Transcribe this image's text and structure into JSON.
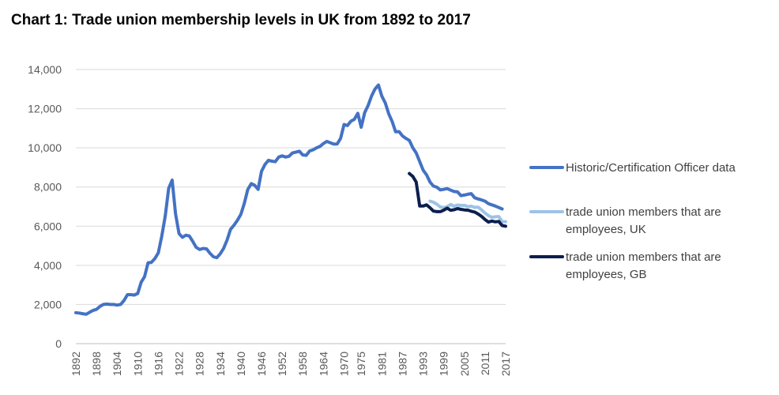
{
  "title": "Chart 1: Trade union membership levels in UK from 1892 to 2017",
  "chart_data": {
    "type": "line",
    "title": "Chart 1: Trade union membership levels in UK from 1892 to 2017",
    "xlabel": "",
    "ylabel": "",
    "ylim": [
      0,
      14000
    ],
    "xlim": [
      1892,
      2017
    ],
    "grid": true,
    "legend_position": "right",
    "y_ticks": [
      "0",
      "2,000",
      "4,000",
      "6,000",
      "8,000",
      "10,000",
      "12,000",
      "14,000"
    ],
    "x_ticks": [
      "1892",
      "1898",
      "1904",
      "1910",
      "1916",
      "1922",
      "1928",
      "1934",
      "1940",
      "1946",
      "1952",
      "1958",
      "1964",
      "1970",
      "1975",
      "1981",
      "1987",
      "1993",
      "1999",
      "2005",
      "2011",
      "2017"
    ],
    "series": [
      {
        "name": "Historic/Certification Officer data",
        "color": "#4472C4",
        "points": [
          [
            1892,
            1580
          ],
          [
            1893,
            1560
          ],
          [
            1894,
            1530
          ],
          [
            1895,
            1500
          ],
          [
            1896,
            1600
          ],
          [
            1897,
            1700
          ],
          [
            1898,
            1750
          ],
          [
            1899,
            1900
          ],
          [
            1900,
            2000
          ],
          [
            1901,
            2020
          ],
          [
            1902,
            2000
          ],
          [
            1903,
            2000
          ],
          [
            1904,
            1970
          ],
          [
            1905,
            2000
          ],
          [
            1906,
            2200
          ],
          [
            1907,
            2500
          ],
          [
            1908,
            2500
          ],
          [
            1909,
            2480
          ],
          [
            1910,
            2560
          ],
          [
            1911,
            3140
          ],
          [
            1912,
            3420
          ],
          [
            1913,
            4130
          ],
          [
            1914,
            4150
          ],
          [
            1915,
            4350
          ],
          [
            1916,
            4640
          ],
          [
            1917,
            5500
          ],
          [
            1918,
            6530
          ],
          [
            1919,
            7930
          ],
          [
            1920,
            8350
          ],
          [
            1921,
            6630
          ],
          [
            1922,
            5620
          ],
          [
            1923,
            5430
          ],
          [
            1924,
            5540
          ],
          [
            1925,
            5500
          ],
          [
            1926,
            5220
          ],
          [
            1927,
            4920
          ],
          [
            1928,
            4810
          ],
          [
            1929,
            4860
          ],
          [
            1930,
            4840
          ],
          [
            1931,
            4620
          ],
          [
            1932,
            4440
          ],
          [
            1933,
            4390
          ],
          [
            1934,
            4590
          ],
          [
            1935,
            4870
          ],
          [
            1936,
            5300
          ],
          [
            1937,
            5840
          ],
          [
            1938,
            6050
          ],
          [
            1939,
            6300
          ],
          [
            1940,
            6610
          ],
          [
            1941,
            7160
          ],
          [
            1942,
            7870
          ],
          [
            1943,
            8170
          ],
          [
            1944,
            8090
          ],
          [
            1945,
            7880
          ],
          [
            1946,
            8800
          ],
          [
            1947,
            9150
          ],
          [
            1948,
            9360
          ],
          [
            1949,
            9320
          ],
          [
            1950,
            9290
          ],
          [
            1951,
            9530
          ],
          [
            1952,
            9590
          ],
          [
            1953,
            9530
          ],
          [
            1954,
            9570
          ],
          [
            1955,
            9740
          ],
          [
            1956,
            9780
          ],
          [
            1957,
            9830
          ],
          [
            1958,
            9640
          ],
          [
            1959,
            9620
          ],
          [
            1960,
            9840
          ],
          [
            1961,
            9900
          ],
          [
            1962,
            10000
          ],
          [
            1963,
            10070
          ],
          [
            1964,
            10220
          ],
          [
            1965,
            10330
          ],
          [
            1966,
            10260
          ],
          [
            1967,
            10190
          ],
          [
            1968,
            10200
          ],
          [
            1969,
            10480
          ],
          [
            1970,
            11190
          ],
          [
            1971,
            11140
          ],
          [
            1972,
            11360
          ],
          [
            1973,
            11460
          ],
          [
            1974,
            11760
          ],
          [
            1975,
            11050
          ],
          [
            1976,
            11800
          ],
          [
            1977,
            12160
          ],
          [
            1978,
            12650
          ],
          [
            1979,
            13000
          ],
          [
            1980,
            13210
          ],
          [
            1981,
            12640
          ],
          [
            1982,
            12290
          ],
          [
            1983,
            11740
          ],
          [
            1984,
            11340
          ],
          [
            1985,
            10820
          ],
          [
            1986,
            10830
          ],
          [
            1987,
            10610
          ],
          [
            1988,
            10480
          ],
          [
            1989,
            10380
          ],
          [
            1990,
            10000
          ],
          [
            1991,
            9740
          ],
          [
            1992,
            9300
          ],
          [
            1993,
            8860
          ],
          [
            1994,
            8620
          ],
          [
            1995,
            8250
          ],
          [
            1996,
            8050
          ],
          [
            1997,
            7990
          ],
          [
            1998,
            7850
          ],
          [
            1999,
            7880
          ],
          [
            2000,
            7920
          ],
          [
            2001,
            7840
          ],
          [
            2002,
            7770
          ],
          [
            2003,
            7750
          ],
          [
            2004,
            7560
          ],
          [
            2005,
            7590
          ],
          [
            2006,
            7630
          ],
          [
            2007,
            7660
          ],
          [
            2008,
            7450
          ],
          [
            2009,
            7390
          ],
          [
            2010,
            7340
          ],
          [
            2011,
            7280
          ],
          [
            2012,
            7150
          ],
          [
            2013,
            7090
          ],
          [
            2014,
            7030
          ],
          [
            2015,
            6950
          ],
          [
            2016,
            6880
          ]
        ]
      },
      {
        "name": "trade union members that are employees, UK",
        "color": "#9DC3E6",
        "points": [
          [
            1995,
            7280
          ],
          [
            1996,
            7220
          ],
          [
            1997,
            7120
          ],
          [
            1998,
            6980
          ],
          [
            1999,
            6950
          ],
          [
            2000,
            6990
          ],
          [
            2001,
            7110
          ],
          [
            2002,
            7020
          ],
          [
            2003,
            7080
          ],
          [
            2004,
            7060
          ],
          [
            2005,
            7060
          ],
          [
            2006,
            7000
          ],
          [
            2007,
            7020
          ],
          [
            2008,
            6960
          ],
          [
            2009,
            6970
          ],
          [
            2010,
            6830
          ],
          [
            2011,
            6670
          ],
          [
            2012,
            6540
          ],
          [
            2013,
            6450
          ],
          [
            2014,
            6480
          ],
          [
            2015,
            6490
          ],
          [
            2016,
            6230
          ],
          [
            2017,
            6230
          ]
        ]
      },
      {
        "name": "trade union members that are employees, GB",
        "color": "#0C1F4D",
        "points": [
          [
            1989,
            8690
          ],
          [
            1990,
            8540
          ],
          [
            1991,
            8250
          ],
          [
            1992,
            7030
          ],
          [
            1993,
            7030
          ],
          [
            1994,
            7090
          ],
          [
            1995,
            6940
          ],
          [
            1996,
            6770
          ],
          [
            1997,
            6740
          ],
          [
            1998,
            6740
          ],
          [
            1999,
            6820
          ],
          [
            2000,
            6920
          ],
          [
            2001,
            6810
          ],
          [
            2002,
            6840
          ],
          [
            2003,
            6900
          ],
          [
            2004,
            6860
          ],
          [
            2005,
            6830
          ],
          [
            2006,
            6820
          ],
          [
            2007,
            6760
          ],
          [
            2008,
            6720
          ],
          [
            2009,
            6620
          ],
          [
            2010,
            6500
          ],
          [
            2011,
            6340
          ],
          [
            2012,
            6210
          ],
          [
            2013,
            6260
          ],
          [
            2014,
            6220
          ],
          [
            2015,
            6240
          ],
          [
            2016,
            6030
          ],
          [
            2017,
            6000
          ]
        ]
      }
    ]
  }
}
